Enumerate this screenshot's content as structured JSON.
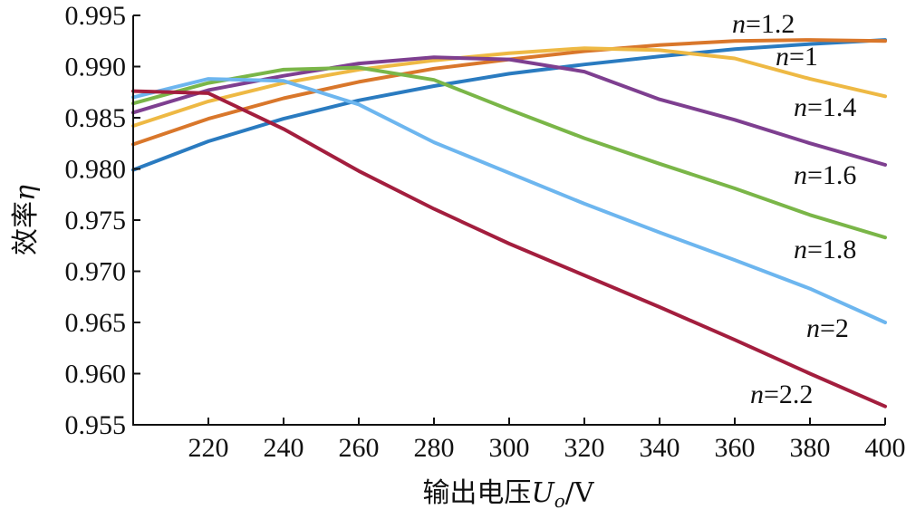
{
  "chart_data": {
    "type": "line",
    "xlabel": {
      "prefix": "输出电压",
      "sym": "U",
      "sub": "o",
      "suffix": "/V"
    },
    "ylabel": {
      "prefix": "效率",
      "sym": "η"
    },
    "xlim": [
      200,
      400
    ],
    "ylim": [
      0.955,
      0.995
    ],
    "x_ticks": [
      220,
      240,
      260,
      280,
      300,
      320,
      340,
      360,
      380,
      400
    ],
    "y_ticks": [
      "0.995",
      "0.990",
      "0.985",
      "0.980",
      "0.975",
      "0.970",
      "0.965",
      "0.960",
      "0.955"
    ],
    "grid": false,
    "series": [
      {
        "name": "n=1",
        "var": "n",
        "eq": "=1",
        "color": "#2a7bc0",
        "points": [
          [
            200,
            0.9799
          ],
          [
            220,
            0.9827
          ],
          [
            240,
            0.9849
          ],
          [
            260,
            0.9867
          ],
          [
            280,
            0.9881
          ],
          [
            300,
            0.9893
          ],
          [
            320,
            0.9902
          ],
          [
            340,
            0.991
          ],
          [
            360,
            0.9917
          ],
          [
            380,
            0.9922
          ],
          [
            400,
            0.9926
          ]
        ]
      },
      {
        "name": "n=1.2",
        "var": "n",
        "eq": "=1.2",
        "color": "#d9772b",
        "points": [
          [
            200,
            0.9824
          ],
          [
            220,
            0.9849
          ],
          [
            240,
            0.9869
          ],
          [
            260,
            0.9885
          ],
          [
            280,
            0.9898
          ],
          [
            300,
            0.9907
          ],
          [
            320,
            0.9915
          ],
          [
            340,
            0.9921
          ],
          [
            360,
            0.9925
          ],
          [
            380,
            0.9926
          ],
          [
            400,
            0.9925
          ]
        ]
      },
      {
        "name": "n=1.4",
        "var": "n",
        "eq": "=1.4",
        "color": "#eeb944",
        "points": [
          [
            200,
            0.9842
          ],
          [
            220,
            0.9866
          ],
          [
            240,
            0.9884
          ],
          [
            260,
            0.9897
          ],
          [
            280,
            0.9906
          ],
          [
            300,
            0.9913
          ],
          [
            320,
            0.9918
          ],
          [
            340,
            0.9916
          ],
          [
            360,
            0.9908
          ],
          [
            380,
            0.9888
          ],
          [
            400,
            0.9871
          ]
        ]
      },
      {
        "name": "n=1.6",
        "var": "n",
        "eq": "=1.6",
        "color": "#7e3f90",
        "points": [
          [
            200,
            0.9855
          ],
          [
            220,
            0.9877
          ],
          [
            240,
            0.9891
          ],
          [
            260,
            0.9903
          ],
          [
            280,
            0.9909
          ],
          [
            300,
            0.9907
          ],
          [
            320,
            0.9895
          ],
          [
            340,
            0.9868
          ],
          [
            360,
            0.9848
          ],
          [
            380,
            0.9825
          ],
          [
            400,
            0.9804
          ]
        ]
      },
      {
        "name": "n=1.8",
        "var": "n",
        "eq": "=1.8",
        "color": "#7ab648",
        "points": [
          [
            200,
            0.9864
          ],
          [
            220,
            0.9884
          ],
          [
            240,
            0.9897
          ],
          [
            260,
            0.9899
          ],
          [
            280,
            0.9887
          ],
          [
            300,
            0.9858
          ],
          [
            320,
            0.983
          ],
          [
            340,
            0.9805
          ],
          [
            360,
            0.9781
          ],
          [
            380,
            0.9755
          ],
          [
            400,
            0.9733
          ]
        ]
      },
      {
        "name": "n=2",
        "var": "n",
        "eq": "=2",
        "color": "#6db6ef",
        "points": [
          [
            200,
            0.987
          ],
          [
            220,
            0.9888
          ],
          [
            240,
            0.9886
          ],
          [
            260,
            0.9863
          ],
          [
            280,
            0.9826
          ],
          [
            300,
            0.9796
          ],
          [
            320,
            0.9766
          ],
          [
            340,
            0.9738
          ],
          [
            360,
            0.9711
          ],
          [
            380,
            0.9683
          ],
          [
            400,
            0.965
          ]
        ]
      },
      {
        "name": "n=2.2",
        "var": "n",
        "eq": "=2.2",
        "color": "#a31e3e",
        "points": [
          [
            200,
            0.9876
          ],
          [
            220,
            0.9874
          ],
          [
            240,
            0.9839
          ],
          [
            260,
            0.9798
          ],
          [
            280,
            0.9761
          ],
          [
            300,
            0.9727
          ],
          [
            320,
            0.9696
          ],
          [
            340,
            0.9665
          ],
          [
            360,
            0.9633
          ],
          [
            380,
            0.96
          ],
          [
            400,
            0.9568
          ]
        ]
      }
    ]
  }
}
